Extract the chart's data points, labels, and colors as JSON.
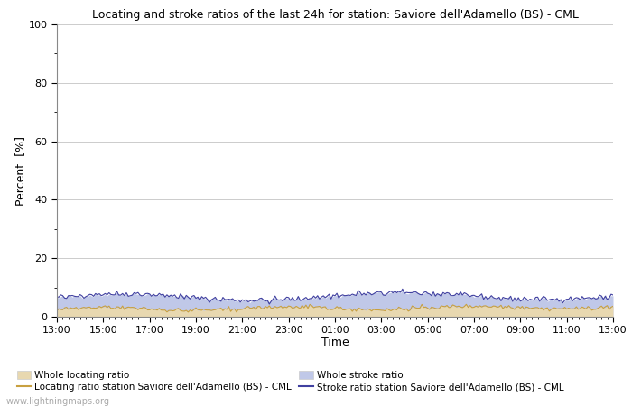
{
  "title": "Locating and stroke ratios of the last 24h for station: Saviore dell'Adamello (BS) - CML",
  "xlabel": "Time",
  "ylabel": "Percent  [%]",
  "ylim": [
    0,
    100
  ],
  "yticks": [
    0,
    20,
    40,
    60,
    80,
    100
  ],
  "yticks_minor": [
    10,
    30,
    50,
    70,
    90
  ],
  "x_labels": [
    "13:00",
    "15:00",
    "17:00",
    "19:00",
    "21:00",
    "23:00",
    "01:00",
    "03:00",
    "05:00",
    "07:00",
    "09:00",
    "11:00",
    "13:00"
  ],
  "background_color": "#ffffff",
  "plot_bg_color": "#ffffff",
  "grid_color": "#cccccc",
  "watermark": "www.lightningmaps.org",
  "locating_fill_color": "#e8d8b0",
  "locating_line_color": "#c8a040",
  "stroke_fill_color": "#c0c8e8",
  "stroke_line_color": "#4040a0",
  "legend_labels": [
    "Whole locating ratio",
    "Locating ratio station Saviore dell'Adamello (BS) - CML",
    "Whole stroke ratio",
    "Stroke ratio station Saviore dell'Adamello (BS) - CML"
  ],
  "n_points": 289,
  "figwidth": 7.0,
  "figheight": 4.5,
  "dpi": 100
}
